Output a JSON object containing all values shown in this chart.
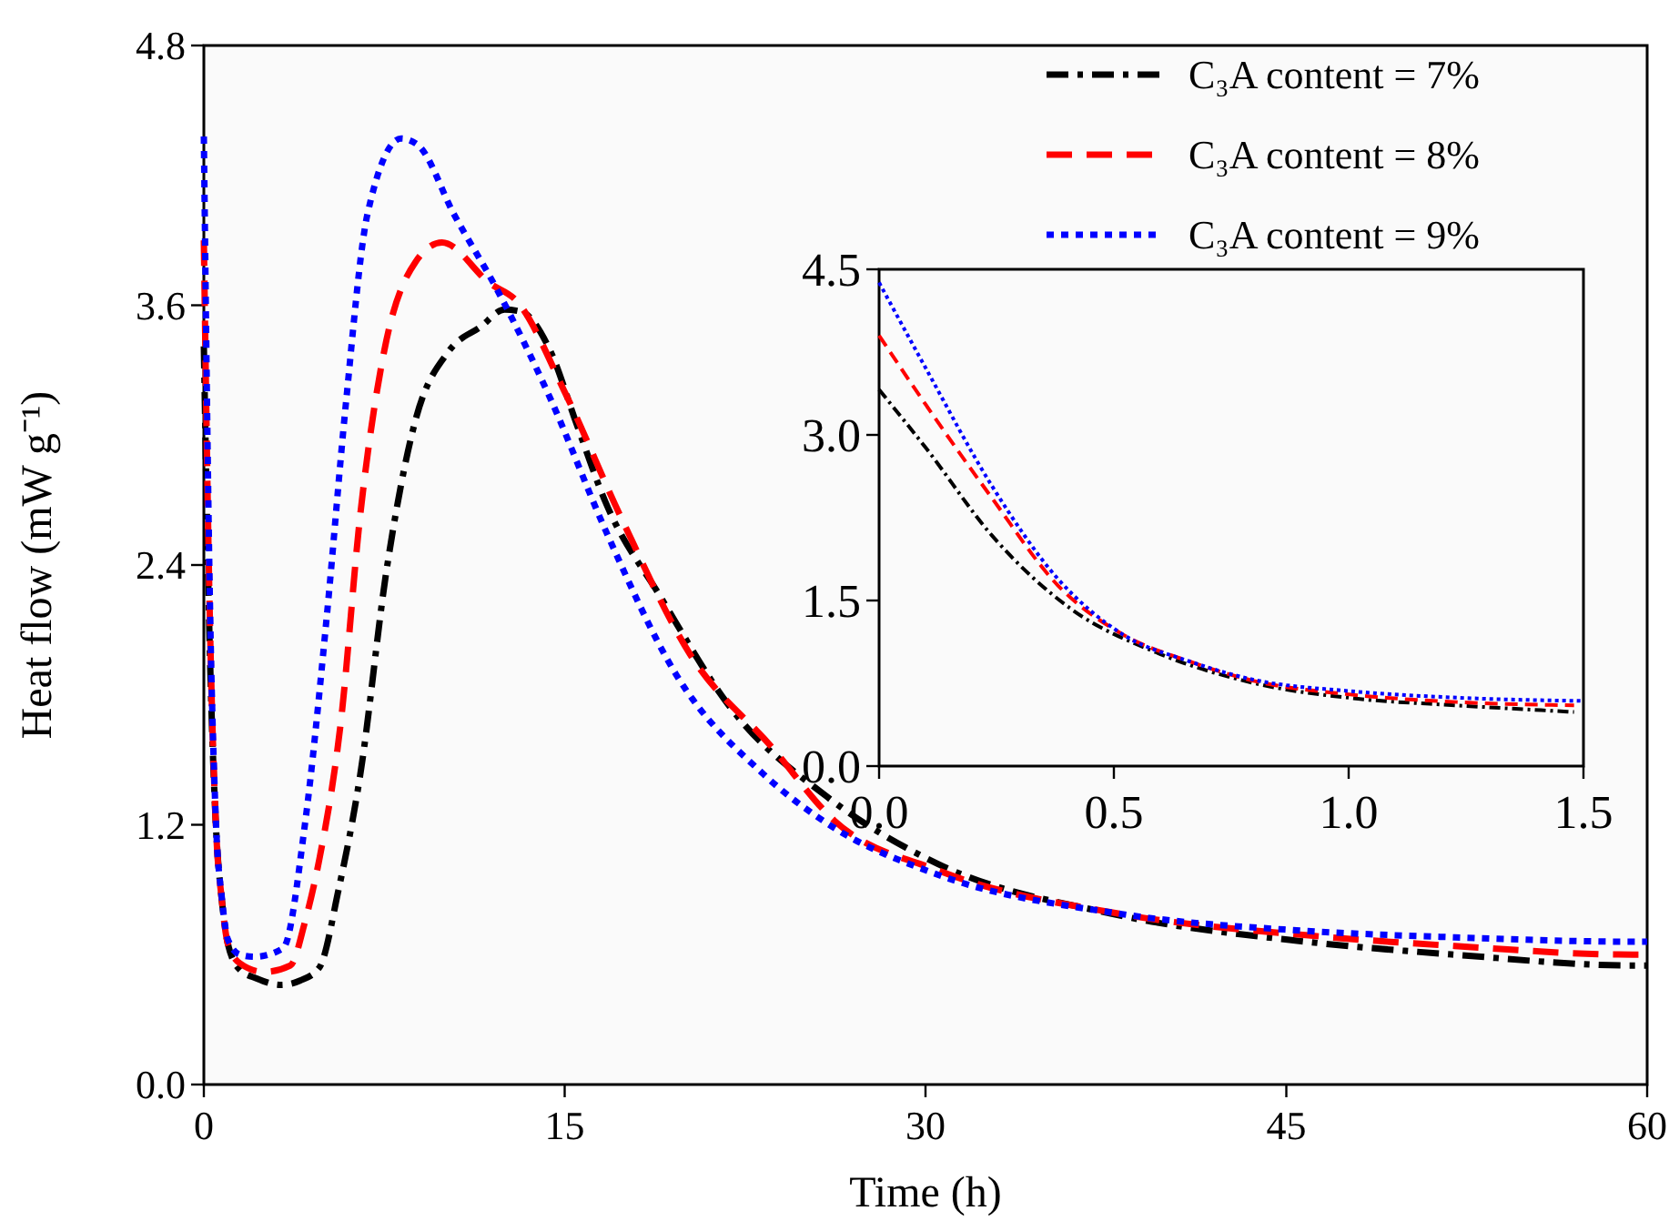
{
  "chart_data": [
    {
      "type": "line",
      "xlabel": "Time (h)",
      "ylabel": "Heat flow (mW g⁻¹)",
      "xlim": [
        0,
        60
      ],
      "ylim": [
        0,
        4.8
      ],
      "xticks": [
        0,
        15,
        30,
        45,
        60
      ],
      "yticks": [
        {
          "value": 0,
          "label": "0.0"
        },
        {
          "value": 1.2,
          "label": "1.2"
        },
        {
          "value": 2.4,
          "label": "2.4"
        },
        {
          "value": 3.6,
          "label": "3.6"
        },
        {
          "value": 4.8,
          "label": "4.8"
        }
      ],
      "legend": "top right",
      "grid": false,
      "series": [
        {
          "name": "C₃A content = 7%",
          "color": "#000000",
          "line_style": "dashdot",
          "x": [
            0,
            0.25,
            0.5,
            0.75,
            1.0,
            1.5,
            2.2,
            3.2,
            4.0,
            4.8,
            5.6,
            6.5,
            7.6,
            8.8,
            10.2,
            11.5,
            12.5,
            13.2,
            14.4,
            15.5,
            16.7,
            19,
            21.9,
            25.9,
            30.5,
            37.7,
            45.8,
            52,
            59.4,
            60
          ],
          "values": [
            3.41,
            2.0,
            1.2,
            0.85,
            0.65,
            0.53,
            0.49,
            0.46,
            0.48,
            0.54,
            0.9,
            1.43,
            2.38,
            3.07,
            3.39,
            3.5,
            3.58,
            3.57,
            3.39,
            3.05,
            2.69,
            2.25,
            1.74,
            1.33,
            1.02,
            0.79,
            0.66,
            0.6,
            0.55,
            0.55
          ]
        },
        {
          "name": "C₃A content = 8%",
          "color": "#ff0000",
          "line_style": "dashed",
          "x": [
            0,
            0.25,
            0.5,
            0.75,
            1.0,
            1.5,
            2.5,
            3.6,
            4.2,
            4.8,
            5.7,
            6.5,
            7.5,
            8.8,
            9.9,
            11.9,
            13,
            15,
            17.3,
            20.2,
            23.6,
            26.2,
            30.5,
            38,
            45.8,
            52,
            59.4,
            60
          ],
          "values": [
            3.9,
            2.15,
            1.2,
            0.85,
            0.65,
            0.56,
            0.52,
            0.55,
            0.75,
            1.04,
            1.68,
            2.63,
            3.39,
            3.8,
            3.89,
            3.7,
            3.62,
            3.2,
            2.63,
            1.99,
            1.56,
            1.22,
            0.99,
            0.79,
            0.69,
            0.64,
            0.6,
            0.6
          ]
        },
        {
          "name": "C₃A content = 9%",
          "color": "#0000ff",
          "line_style": "dotted",
          "x": [
            0,
            0.25,
            0.5,
            0.75,
            1.0,
            1.5,
            2.1,
            3.3,
            4.2,
            5.1,
            5.9,
            6.8,
            8.2,
            8.9,
            10.4,
            12.2,
            14.4,
            16.7,
            19.6,
            23.3,
            26,
            30.5,
            38,
            45.8,
            52,
            59.4,
            60
          ],
          "values": [
            4.38,
            2.25,
            1.22,
            0.86,
            0.67,
            0.6,
            0.59,
            0.63,
            1.2,
            2.15,
            3.14,
            4.02,
            4.37,
            4.34,
            4.02,
            3.67,
            3.17,
            2.56,
            1.9,
            1.43,
            1.2,
            0.97,
            0.79,
            0.71,
            0.68,
            0.66,
            0.66
          ]
        }
      ]
    },
    {
      "type": "line",
      "xlim": [
        0,
        1.5
      ],
      "ylim": [
        0,
        4.5
      ],
      "xticks": [
        {
          "value": 0,
          "label": "0.0"
        },
        0.5,
        {
          "value": 1,
          "label": "1.0"
        },
        1.5
      ],
      "yticks": [
        {
          "value": 0,
          "label": "0.0"
        },
        1.5,
        {
          "value": 3,
          "label": "3.0"
        },
        4.5
      ],
      "grid": false,
      "legend": false,
      "series": [
        {
          "color": "#000000",
          "line_style": "dashdot",
          "x": [
            0,
            0.1,
            0.24,
            0.41,
            0.59,
            0.8,
            1.02,
            1.23,
            1.48
          ],
          "values": [
            3.41,
            2.88,
            2.09,
            1.42,
            1.03,
            0.75,
            0.61,
            0.55,
            0.49
          ]
        },
        {
          "color": "#ff0000",
          "line_style": "dashed",
          "x": [
            0,
            0.1,
            0.24,
            0.38,
            0.52,
            0.66,
            0.8,
            1.0,
            1.23,
            1.48
          ],
          "values": [
            3.9,
            3.27,
            2.43,
            1.64,
            1.19,
            0.95,
            0.77,
            0.65,
            0.58,
            0.55
          ]
        },
        {
          "color": "#0000ff",
          "line_style": "dotted",
          "x": [
            0,
            0.1,
            0.24,
            0.38,
            0.52,
            0.66,
            0.8,
            1.0,
            1.23,
            1.5
          ],
          "values": [
            4.38,
            3.6,
            2.54,
            1.7,
            1.19,
            0.95,
            0.78,
            0.68,
            0.62,
            0.59
          ]
        }
      ]
    }
  ]
}
